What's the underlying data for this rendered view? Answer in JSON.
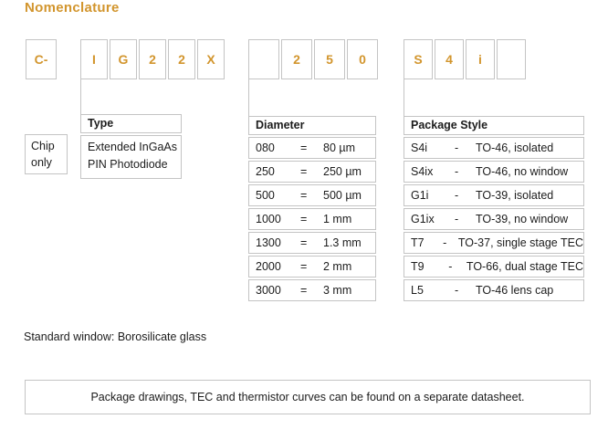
{
  "title": "Nomenclature",
  "colors": {
    "accent": "#D2952D",
    "border": "#C4C4C4",
    "text": "#1C1C1C"
  },
  "part_number": {
    "prefix": "C-",
    "groups": [
      {
        "cells": [
          "I",
          "G",
          "2",
          "2",
          "X"
        ]
      },
      {
        "cells": [
          "",
          "2",
          "5",
          "0"
        ]
      },
      {
        "cells": [
          "S",
          "4",
          "i",
          ""
        ]
      }
    ]
  },
  "chip_only": {
    "line1": "Chip",
    "line2": "only"
  },
  "type_table": {
    "header": "Type",
    "line1": "Extended InGaAs",
    "line2": "PIN Photodiode"
  },
  "diameter_table": {
    "header": "Diameter",
    "rows": [
      {
        "code": "080",
        "eq": "=",
        "value": "80 µm"
      },
      {
        "code": "250",
        "eq": "=",
        "value": "250 µm"
      },
      {
        "code": "500",
        "eq": "=",
        "value": "500 µm"
      },
      {
        "code": "1000",
        "eq": "=",
        "value": "1 mm"
      },
      {
        "code": "1300",
        "eq": "=",
        "value": "1.3 mm"
      },
      {
        "code": "2000",
        "eq": "=",
        "value": "2 mm"
      },
      {
        "code": "3000",
        "eq": "=",
        "value": "3 mm"
      }
    ]
  },
  "package_table": {
    "header": "Package Style",
    "rows": [
      {
        "code": "S4i",
        "dash": "-",
        "value": "TO-46, isolated"
      },
      {
        "code": "S4ix",
        "dash": "-",
        "value": "TO-46, no window"
      },
      {
        "code": "G1i",
        "dash": "-",
        "value": "TO-39, isolated"
      },
      {
        "code": "G1ix",
        "dash": "-",
        "value": "TO-39, no window"
      },
      {
        "code": "T7",
        "dash": "-",
        "value": "TO-37, single stage TEC"
      },
      {
        "code": "T9",
        "dash": "-",
        "value": "TO-66, dual stage TEC"
      },
      {
        "code": "L5",
        "dash": "-",
        "value": "TO-46 lens cap"
      }
    ]
  },
  "standard_window_note": "Standard window: Borosilicate glass",
  "footer_note": "Package drawings, TEC and thermistor curves can be found on a separate datasheet."
}
